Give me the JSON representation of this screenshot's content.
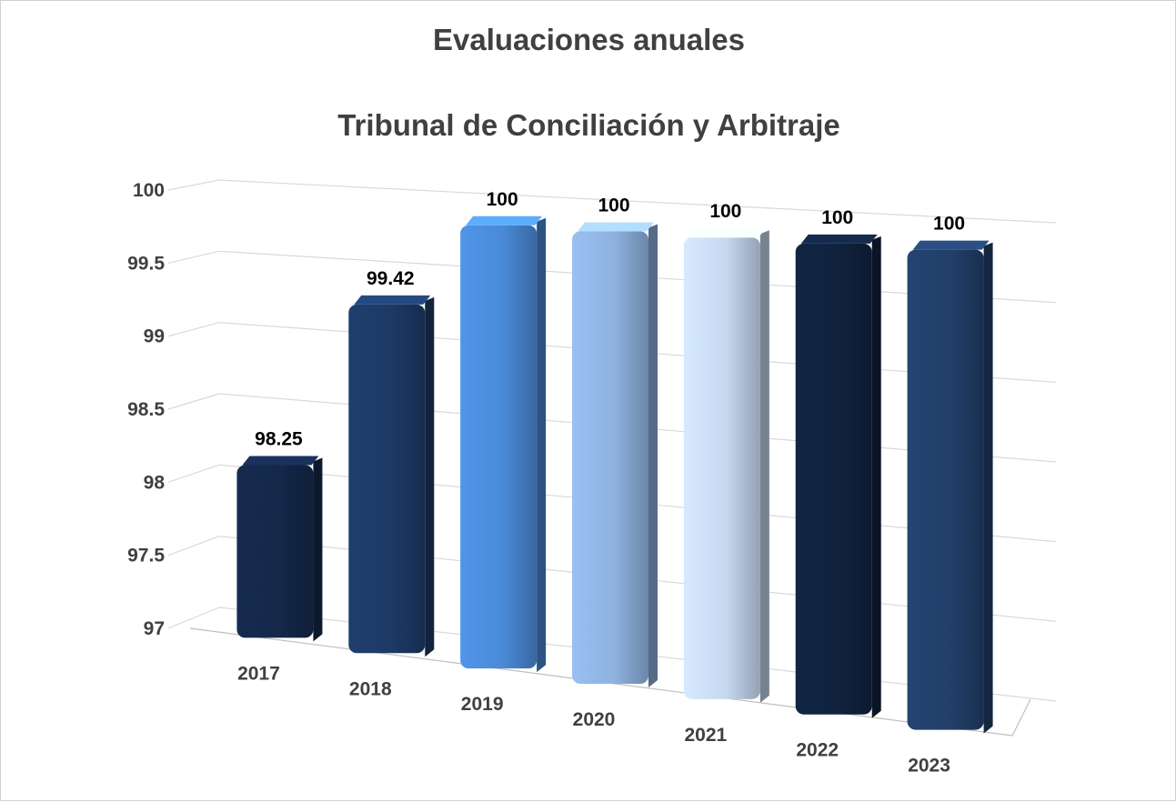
{
  "chart_data": {
    "type": "bar",
    "title": "Evaluaciones anuales",
    "subtitle": "Tribunal de Conciliación y Arbitraje",
    "categories": [
      "2017",
      "2018",
      "2019",
      "2020",
      "2021",
      "2022",
      "2023"
    ],
    "values": [
      98.25,
      99.42,
      100,
      100,
      100,
      100,
      100
    ],
    "data_labels": [
      "98.25",
      "99.42",
      "100",
      "100",
      "100",
      "100",
      "100"
    ],
    "bar_colors": [
      "#14284a",
      "#1d3a66",
      "#4a8ad8",
      "#8eb2e0",
      "#c6d8f0",
      "#10223e",
      "#223f6a"
    ],
    "ylim": [
      97,
      100
    ],
    "yticks": [
      "97",
      "97.5",
      "98",
      "98.5",
      "99",
      "99.5",
      "100"
    ],
    "grid": true,
    "legend": "none",
    "style": "3d-perspective"
  }
}
